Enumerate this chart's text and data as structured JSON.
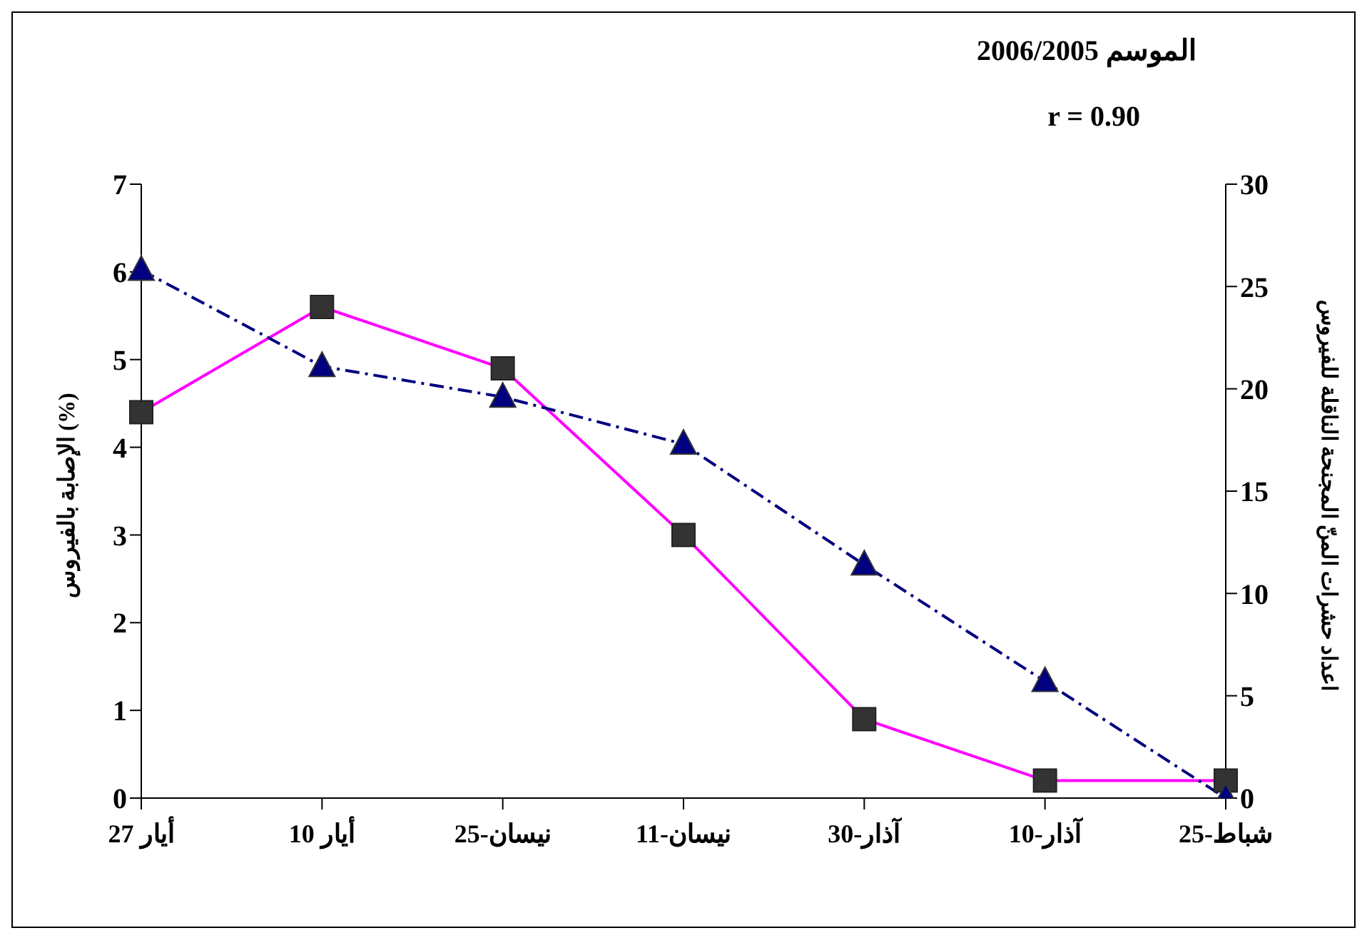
{
  "chart_data": {
    "type": "line",
    "title": "الموسم 2006/2005",
    "subtitle": "r = 0.90",
    "ylabel": "الإصابة بالفيروس (%)",
    "y2label": "اعداد حشرات المنّ المجنحة الناقلة للفيروس",
    "categories": [
      "أيار 27",
      "أيار 10",
      "نيسان-25",
      "نيسان-11",
      "آذار-30",
      "آذار-10",
      "شباط-25"
    ],
    "series": [
      {
        "color": "#ff00ff",
        "values": [
          4.4,
          5.6,
          4.9,
          3.0,
          0.9,
          0.2,
          0.2
        ],
        "marker": "square",
        "line_style": "solid"
      },
      {
        "color": "#000080",
        "values": [
          25.8,
          21.1,
          19.6,
          17.3,
          11.4,
          5.7,
          0
        ],
        "axis": "y2",
        "marker": "triangle",
        "line_style": "dashdot"
      }
    ],
    "ylim": [
      0,
      7
    ],
    "yticks": [
      0,
      1,
      2,
      3,
      4,
      5,
      6,
      7
    ],
    "y2lim": [
      0,
      30
    ],
    "y2ticks": [
      0,
      5,
      10,
      15,
      20,
      25,
      30
    ]
  }
}
